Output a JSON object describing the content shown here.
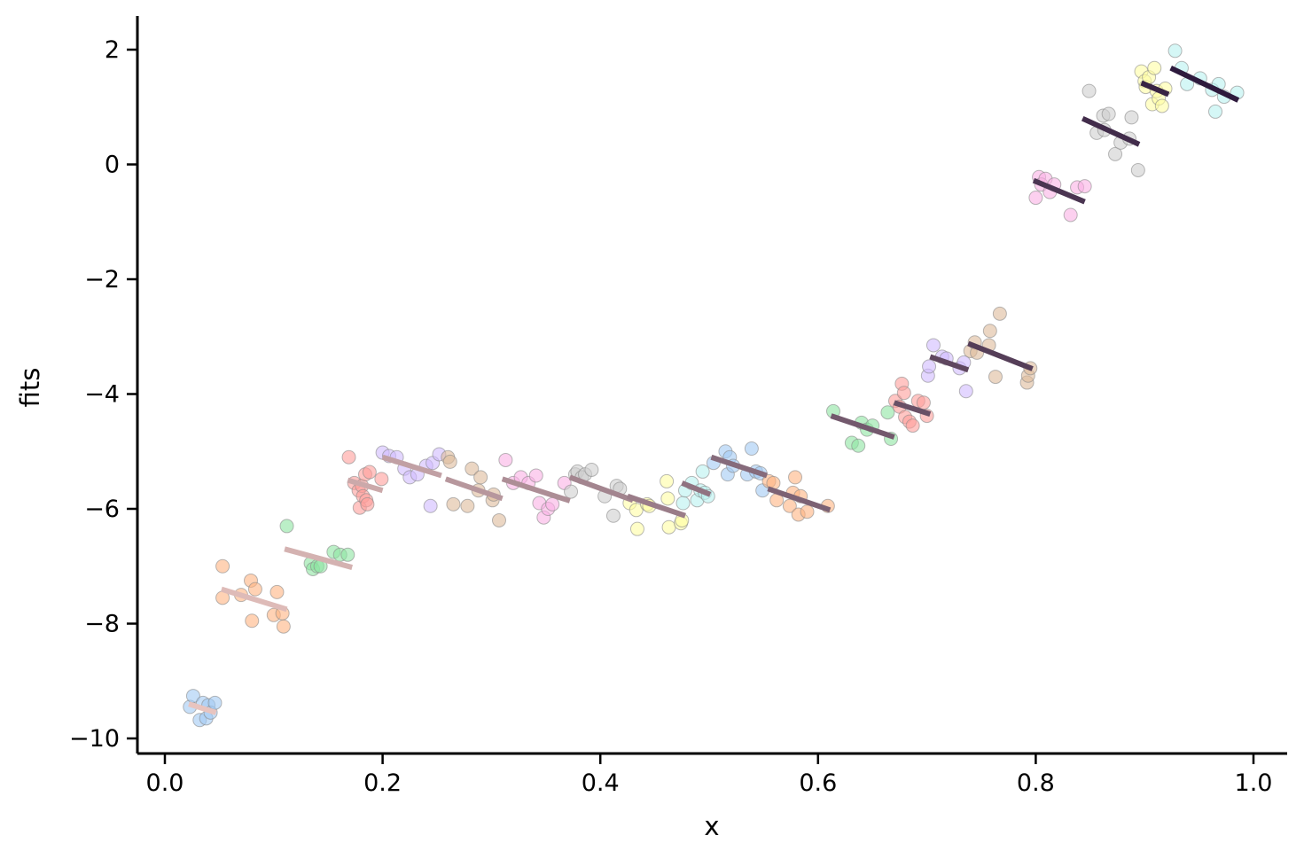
{
  "chart_data": {
    "type": "scatter",
    "title": "",
    "xlabel": "x",
    "ylabel": "fits",
    "xlim": [
      -0.025,
      1.03
    ],
    "ylim": [
      -10.27,
      2.58
    ],
    "xticks": [
      0.0,
      0.2,
      0.4,
      0.6,
      0.8,
      1.0
    ],
    "xtick_labels": [
      "0.0",
      "0.2",
      "0.4",
      "0.6",
      "0.8",
      "1.0"
    ],
    "yticks": [
      2,
      0,
      -2,
      -4,
      -6,
      -8,
      -10
    ],
    "ytick_labels": [
      "2",
      "0",
      "−2",
      "−4",
      "−6",
      "−8",
      "−10"
    ],
    "grid": false,
    "legend": "none",
    "point_colors": [
      "#a1c9f4",
      "#ffb482",
      "#8de5a1",
      "#ff9f9b",
      "#d0bbff",
      "#debb9b",
      "#fab0e4",
      "#cfcfcf",
      "#fffea3",
      "#b9f2f0"
    ],
    "line_color_start": "#e8c4bf",
    "line_color_end": "#2e1a3d",
    "groups": [
      {
        "points": [
          [
            0.023,
            -9.45
          ],
          [
            0.026,
            -9.26
          ],
          [
            0.032,
            -9.68
          ],
          [
            0.035,
            -9.38
          ],
          [
            0.038,
            -9.65
          ],
          [
            0.04,
            -9.42
          ],
          [
            0.042,
            -9.55
          ],
          [
            0.046,
            -9.38
          ]
        ],
        "fit": [
          [
            0.022,
            -9.4
          ],
          [
            0.047,
            -9.55
          ]
        ]
      },
      {
        "points": [
          [
            0.053,
            -7.0
          ],
          [
            0.053,
            -7.55
          ],
          [
            0.07,
            -7.5
          ],
          [
            0.079,
            -7.25
          ],
          [
            0.08,
            -7.95
          ],
          [
            0.083,
            -7.4
          ],
          [
            0.1,
            -7.85
          ],
          [
            0.103,
            -7.45
          ],
          [
            0.108,
            -7.82
          ],
          [
            0.109,
            -8.05
          ]
        ],
        "fit": [
          [
            0.052,
            -7.4
          ],
          [
            0.112,
            -7.75
          ]
        ]
      },
      {
        "points": [
          [
            0.112,
            -6.3
          ],
          [
            0.134,
            -6.95
          ],
          [
            0.136,
            -7.05
          ],
          [
            0.14,
            -7.0
          ],
          [
            0.143,
            -7.0
          ],
          [
            0.155,
            -6.75
          ],
          [
            0.161,
            -6.8
          ],
          [
            0.168,
            -6.8
          ]
        ],
        "fit": [
          [
            0.11,
            -6.7
          ],
          [
            0.172,
            -7.02
          ]
        ]
      },
      {
        "points": [
          [
            0.169,
            -5.1
          ],
          [
            0.174,
            -5.55
          ],
          [
            0.178,
            -5.68
          ],
          [
            0.179,
            -5.98
          ],
          [
            0.181,
            -5.6
          ],
          [
            0.182,
            -5.78
          ],
          [
            0.184,
            -5.4
          ],
          [
            0.185,
            -5.85
          ],
          [
            0.186,
            -5.92
          ],
          [
            0.188,
            -5.36
          ],
          [
            0.199,
            -5.48
          ]
        ],
        "fit": [
          [
            0.168,
            -5.5
          ],
          [
            0.2,
            -5.68
          ]
        ]
      },
      {
        "points": [
          [
            0.2,
            -5.02
          ],
          [
            0.206,
            -5.08
          ],
          [
            0.213,
            -5.1
          ],
          [
            0.22,
            -5.3
          ],
          [
            0.225,
            -5.45
          ],
          [
            0.232,
            -5.4
          ],
          [
            0.24,
            -5.25
          ],
          [
            0.244,
            -5.95
          ],
          [
            0.246,
            -5.2
          ],
          [
            0.252,
            -5.05
          ]
        ],
        "fit": [
          [
            0.2,
            -5.1
          ],
          [
            0.254,
            -5.42
          ]
        ]
      },
      {
        "points": [
          [
            0.26,
            -5.1
          ],
          [
            0.262,
            -5.18
          ],
          [
            0.265,
            -5.92
          ],
          [
            0.278,
            -5.95
          ],
          [
            0.282,
            -5.3
          ],
          [
            0.288,
            -5.68
          ],
          [
            0.29,
            -5.45
          ],
          [
            0.301,
            -5.85
          ],
          [
            0.302,
            -5.75
          ],
          [
            0.307,
            -6.2
          ]
        ],
        "fit": [
          [
            0.258,
            -5.48
          ],
          [
            0.31,
            -5.82
          ]
        ]
      },
      {
        "points": [
          [
            0.313,
            -5.15
          ],
          [
            0.32,
            -5.55
          ],
          [
            0.327,
            -5.45
          ],
          [
            0.334,
            -5.55
          ],
          [
            0.341,
            -5.42
          ],
          [
            0.344,
            -5.9
          ],
          [
            0.348,
            -6.15
          ],
          [
            0.352,
            -6.0
          ],
          [
            0.356,
            -5.92
          ],
          [
            0.367,
            -5.55
          ]
        ],
        "fit": [
          [
            0.31,
            -5.48
          ],
          [
            0.372,
            -5.86
          ]
        ]
      },
      {
        "points": [
          [
            0.373,
            -5.7
          ],
          [
            0.377,
            -5.4
          ],
          [
            0.379,
            -5.35
          ],
          [
            0.383,
            -5.45
          ],
          [
            0.386,
            -5.4
          ],
          [
            0.392,
            -5.32
          ],
          [
            0.404,
            -5.78
          ],
          [
            0.412,
            -6.12
          ],
          [
            0.415,
            -5.6
          ],
          [
            0.418,
            -5.65
          ]
        ],
        "fit": [
          [
            0.372,
            -5.45
          ],
          [
            0.43,
            -5.85
          ]
        ]
      },
      {
        "points": [
          [
            0.427,
            -5.9
          ],
          [
            0.433,
            -6.02
          ],
          [
            0.434,
            -6.35
          ],
          [
            0.443,
            -5.92
          ],
          [
            0.445,
            -5.95
          ],
          [
            0.461,
            -5.52
          ],
          [
            0.462,
            -5.82
          ],
          [
            0.463,
            -6.32
          ],
          [
            0.474,
            -6.25
          ],
          [
            0.475,
            -6.2
          ]
        ],
        "fit": [
          [
            0.425,
            -5.78
          ],
          [
            0.478,
            -6.12
          ]
        ]
      },
      {
        "points": [
          [
            0.476,
            -5.9
          ],
          [
            0.478,
            -5.68
          ],
          [
            0.484,
            -5.55
          ],
          [
            0.489,
            -5.85
          ],
          [
            0.492,
            -5.68
          ],
          [
            0.494,
            -5.35
          ],
          [
            0.496,
            -5.72
          ],
          [
            0.499,
            -5.78
          ]
        ],
        "fit": [
          [
            0.475,
            -5.55
          ],
          [
            0.501,
            -5.75
          ]
        ]
      },
      {
        "points": [
          [
            0.504,
            -5.2
          ],
          [
            0.515,
            -5.0
          ],
          [
            0.517,
            -5.4
          ],
          [
            0.519,
            -5.1
          ],
          [
            0.522,
            -5.25
          ],
          [
            0.535,
            -5.4
          ],
          [
            0.539,
            -4.95
          ],
          [
            0.543,
            -5.35
          ],
          [
            0.547,
            -5.38
          ],
          [
            0.549,
            -5.68
          ]
        ],
        "fit": [
          [
            0.502,
            -5.1
          ],
          [
            0.553,
            -5.42
          ]
        ]
      },
      {
        "points": [
          [
            0.555,
            -5.52
          ],
          [
            0.559,
            -5.55
          ],
          [
            0.562,
            -5.85
          ],
          [
            0.574,
            -5.95
          ],
          [
            0.577,
            -5.72
          ],
          [
            0.579,
            -5.45
          ],
          [
            0.582,
            -6.1
          ],
          [
            0.584,
            -5.78
          ],
          [
            0.59,
            -6.05
          ],
          [
            0.609,
            -5.95
          ]
        ],
        "fit": [
          [
            0.554,
            -5.65
          ],
          [
            0.611,
            -6.02
          ]
        ]
      },
      {
        "points": [
          [
            0.614,
            -4.3
          ],
          [
            0.631,
            -4.85
          ],
          [
            0.637,
            -4.9
          ],
          [
            0.64,
            -4.5
          ],
          [
            0.645,
            -4.62
          ],
          [
            0.65,
            -4.55
          ],
          [
            0.664,
            -4.32
          ],
          [
            0.667,
            -4.78
          ]
        ],
        "fit": [
          [
            0.612,
            -4.38
          ],
          [
            0.67,
            -4.75
          ]
        ]
      },
      {
        "points": [
          [
            0.671,
            -4.12
          ],
          [
            0.675,
            -4.22
          ],
          [
            0.677,
            -3.82
          ],
          [
            0.679,
            -3.98
          ],
          [
            0.68,
            -4.4
          ],
          [
            0.684,
            -4.48
          ],
          [
            0.687,
            -4.55
          ],
          [
            0.692,
            -4.12
          ],
          [
            0.697,
            -4.15
          ],
          [
            0.7,
            -4.38
          ]
        ],
        "fit": [
          [
            0.67,
            -4.15
          ],
          [
            0.703,
            -4.35
          ]
        ]
      },
      {
        "points": [
          [
            0.701,
            -3.68
          ],
          [
            0.702,
            -3.52
          ],
          [
            0.706,
            -3.15
          ],
          [
            0.714,
            -3.35
          ],
          [
            0.718,
            -3.38
          ],
          [
            0.73,
            -3.55
          ],
          [
            0.734,
            -3.45
          ],
          [
            0.736,
            -3.95
          ]
        ],
        "fit": [
          [
            0.703,
            -3.35
          ],
          [
            0.738,
            -3.58
          ]
        ]
      },
      {
        "points": [
          [
            0.74,
            -3.25
          ],
          [
            0.744,
            -3.1
          ],
          [
            0.746,
            -3.28
          ],
          [
            0.757,
            -3.15
          ],
          [
            0.758,
            -2.9
          ],
          [
            0.763,
            -3.7
          ],
          [
            0.767,
            -2.6
          ],
          [
            0.792,
            -3.8
          ],
          [
            0.793,
            -3.68
          ],
          [
            0.795,
            -3.55
          ]
        ],
        "fit": [
          [
            0.738,
            -3.12
          ],
          [
            0.797,
            -3.56
          ]
        ]
      },
      {
        "points": [
          [
            0.8,
            -0.58
          ],
          [
            0.803,
            -0.22
          ],
          [
            0.805,
            -0.35
          ],
          [
            0.809,
            -0.25
          ],
          [
            0.813,
            -0.48
          ],
          [
            0.817,
            -0.35
          ],
          [
            0.832,
            -0.88
          ],
          [
            0.838,
            -0.4
          ],
          [
            0.845,
            -0.38
          ]
        ],
        "fit": [
          [
            0.798,
            -0.28
          ],
          [
            0.845,
            -0.65
          ]
        ]
      },
      {
        "points": [
          [
            0.849,
            1.28
          ],
          [
            0.856,
            0.55
          ],
          [
            0.862,
            0.85
          ],
          [
            0.863,
            0.6
          ],
          [
            0.867,
            0.88
          ],
          [
            0.873,
            0.18
          ],
          [
            0.878,
            0.38
          ],
          [
            0.886,
            0.45
          ],
          [
            0.888,
            0.82
          ],
          [
            0.894,
            -0.1
          ]
        ],
        "fit": [
          [
            0.843,
            0.8
          ],
          [
            0.895,
            0.35
          ]
        ]
      },
      {
        "points": [
          [
            0.897,
            1.62
          ],
          [
            0.9,
            1.45
          ],
          [
            0.901,
            1.35
          ],
          [
            0.904,
            1.52
          ],
          [
            0.907,
            1.05
          ],
          [
            0.909,
            1.68
          ],
          [
            0.911,
            1.28
          ],
          [
            0.913,
            1.15
          ],
          [
            0.916,
            1.02
          ],
          [
            0.919,
            1.32
          ]
        ],
        "fit": [
          [
            0.897,
            1.42
          ],
          [
            0.922,
            1.22
          ]
        ]
      },
      {
        "points": [
          [
            0.928,
            1.98
          ],
          [
            0.934,
            1.68
          ],
          [
            0.939,
            1.4
          ],
          [
            0.951,
            1.5
          ],
          [
            0.962,
            1.3
          ],
          [
            0.965,
            0.92
          ],
          [
            0.968,
            1.4
          ],
          [
            0.973,
            1.18
          ],
          [
            0.985,
            1.25
          ]
        ],
        "fit": [
          [
            0.924,
            1.68
          ],
          [
            0.986,
            1.12
          ]
        ]
      }
    ]
  }
}
